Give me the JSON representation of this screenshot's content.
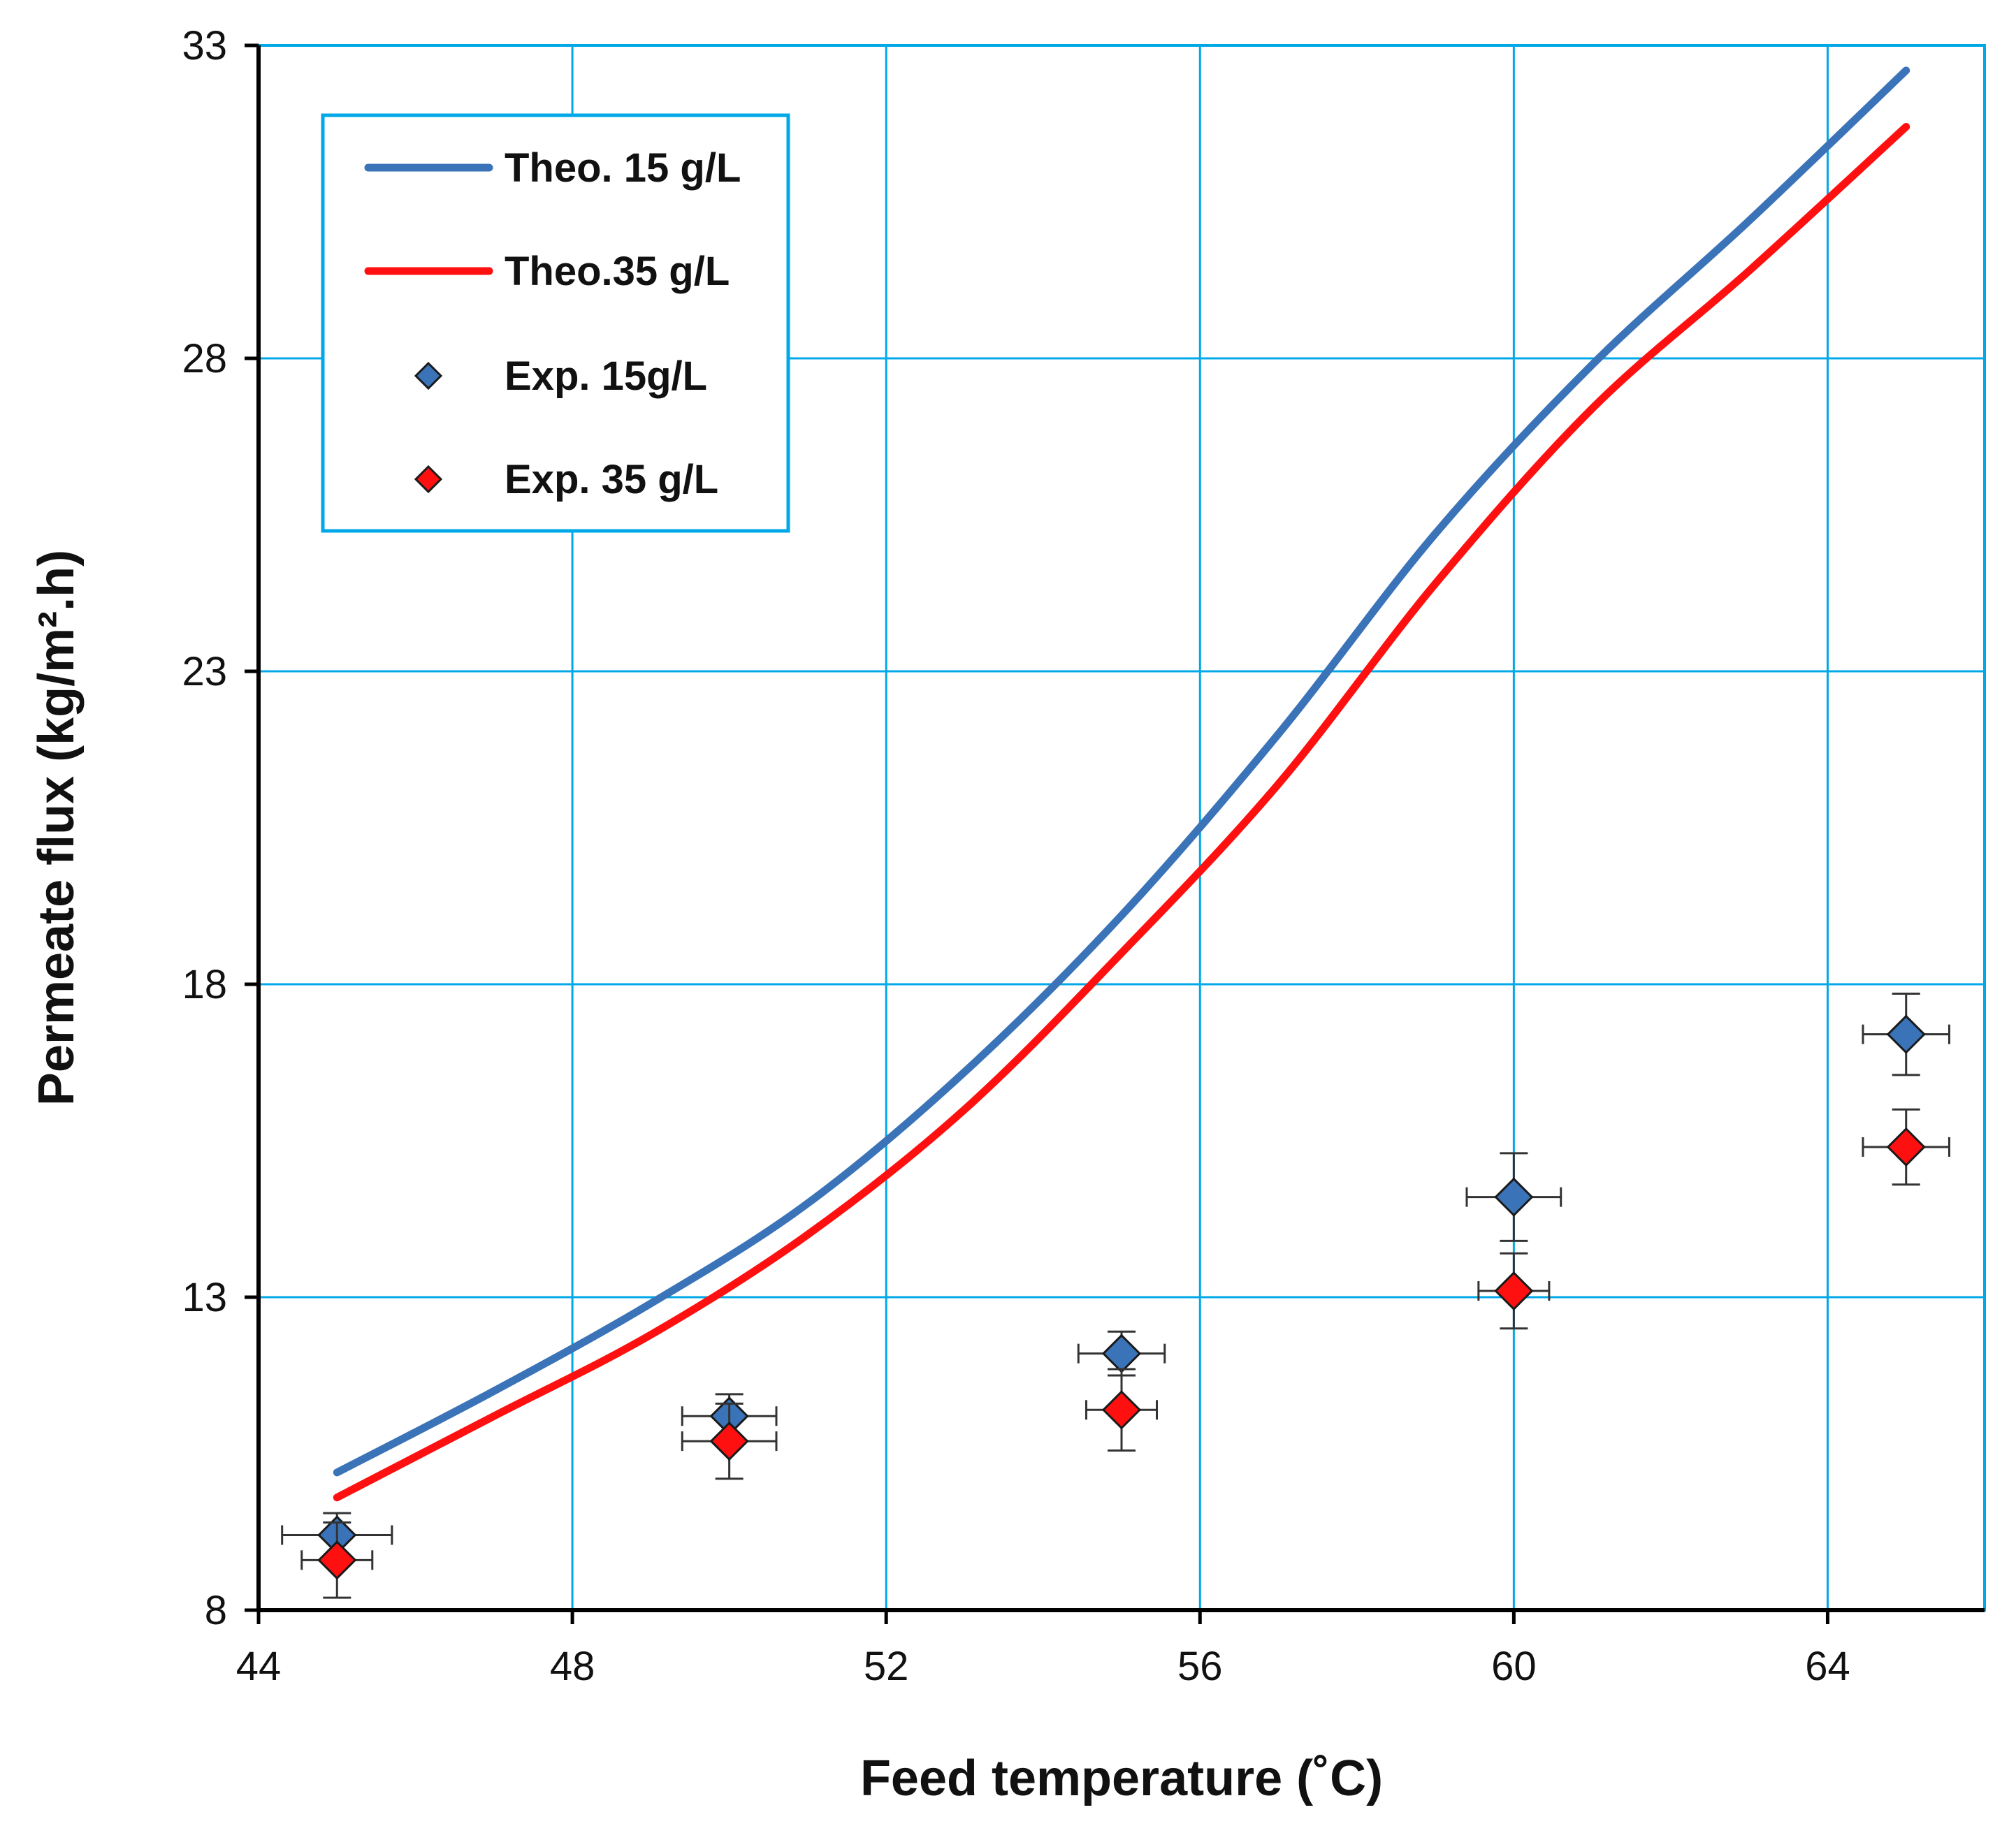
{
  "chart_data": {
    "type": "line",
    "title": "",
    "xlabel": "Feed temperature (˚C)",
    "ylabel": "Permeate flux (kg/m².h)",
    "xlim": [
      44,
      66
    ],
    "ylim": [
      8,
      33
    ],
    "xticks": [
      44,
      48,
      52,
      56,
      60,
      64
    ],
    "yticks": [
      8,
      13,
      18,
      23,
      28,
      33
    ],
    "x_tick_labels": [
      "44",
      "48",
      "52",
      "56",
      "60",
      "64"
    ],
    "y_tick_labels": [
      "8",
      "13",
      "18",
      "23",
      "28",
      "33"
    ],
    "grid": true,
    "legend_position": "top-left",
    "series": [
      {
        "name": "Theo. 15 g/L",
        "kind": "line",
        "color": "#3a73b8",
        "x": [
          45,
          47,
          49,
          51,
          53,
          55,
          57,
          59,
          61,
          63,
          65
        ],
        "y": [
          10.2,
          11.5,
          12.9,
          14.5,
          16.6,
          19.1,
          22.0,
          25.2,
          27.9,
          30.2,
          32.6
        ]
      },
      {
        "name": "Theo.35 g/L",
        "kind": "line",
        "color": "#ff1010",
        "x": [
          45,
          47,
          49,
          51,
          53,
          55,
          57,
          59,
          61,
          63,
          65
        ],
        "y": [
          9.8,
          11.1,
          12.4,
          14.0,
          16.0,
          18.5,
          21.2,
          24.4,
          27.2,
          29.4,
          31.7
        ]
      },
      {
        "name": "Exp. 15g/L",
        "kind": "scatter",
        "color": "#3a73b8",
        "x": [
          45,
          50,
          55,
          60,
          65
        ],
        "y": [
          9.2,
          11.1,
          12.1,
          14.6,
          17.2
        ],
        "x_err": [
          0.7,
          0.6,
          0.55,
          0.6,
          0.55
        ],
        "y_err": [
          0.35,
          0.35,
          0.35,
          0.7,
          0.65
        ]
      },
      {
        "name": "Exp. 35 g/L",
        "kind": "scatter",
        "color": "#ff1010",
        "x": [
          45,
          50,
          55,
          60,
          65
        ],
        "y": [
          8.8,
          10.7,
          11.2,
          13.1,
          15.4
        ],
        "x_err": [
          0.45,
          0.6,
          0.45,
          0.45,
          0.55
        ],
        "y_err": [
          0.6,
          0.6,
          0.65,
          0.6,
          0.6
        ]
      }
    ]
  }
}
